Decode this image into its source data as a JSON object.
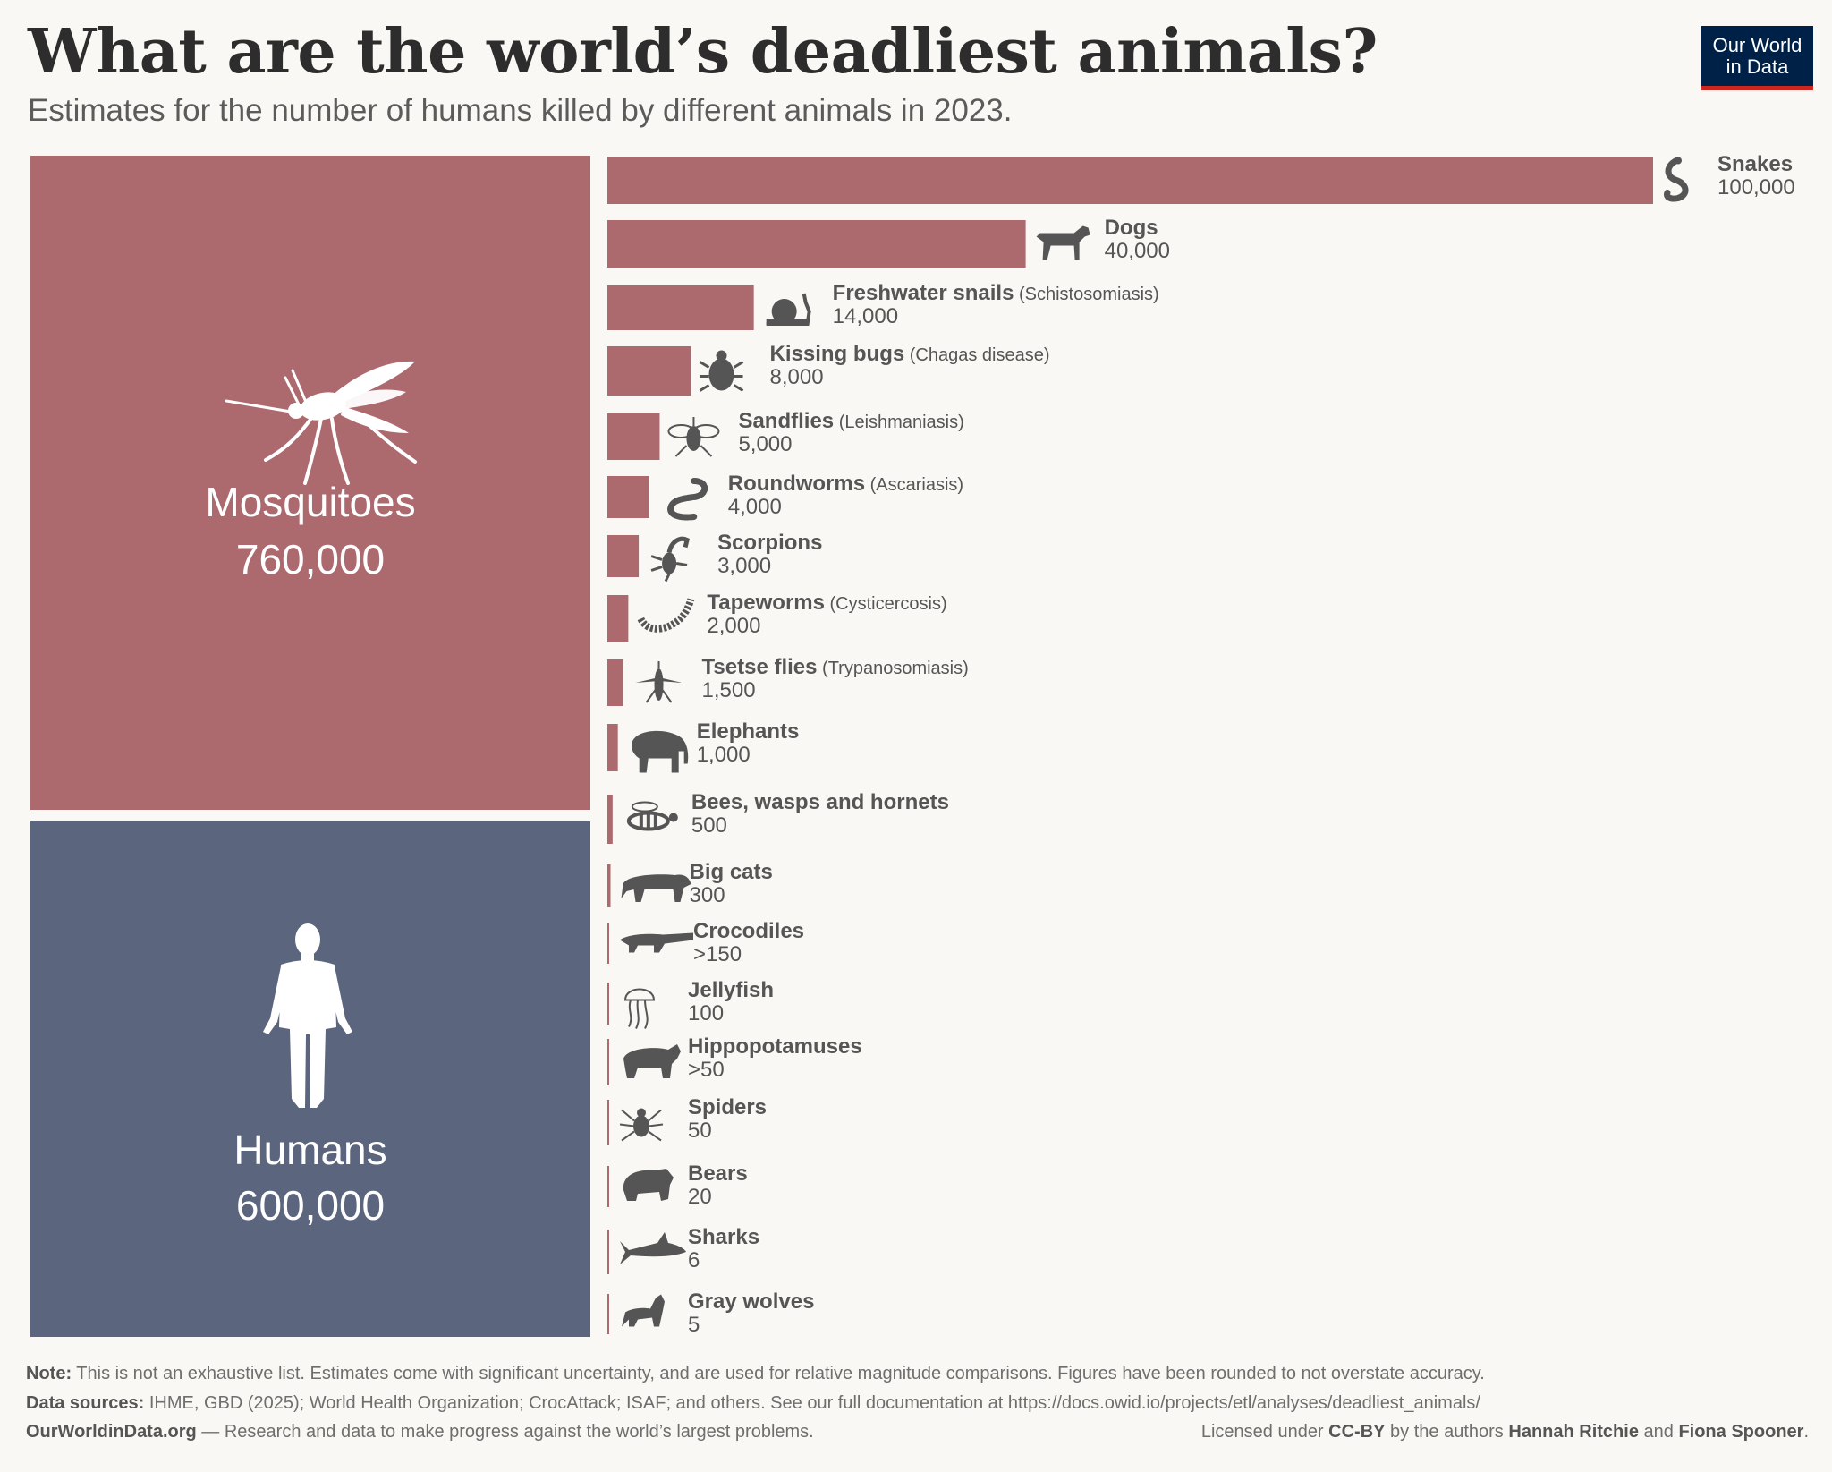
{
  "title": "What are the world’s deadliest animals?",
  "subtitle": "Estimates for the number of humans killed by different animals in 2023.",
  "logo": {
    "line1": "Our World",
    "line2": "in Data"
  },
  "colors": {
    "bar": "#ac6a6f",
    "humans": "#5b657e",
    "icon": "#555555",
    "background": "#f9f8f4"
  },
  "chart_data": {
    "type": "bar",
    "title": "What are the world’s deadliest animals?",
    "subtitle": "Estimates for the number of humans killed by different animals in 2023.",
    "unit": "humans killed",
    "large_blocks": [
      {
        "name": "Mosquitoes",
        "value": 760000,
        "value_label": "760,000",
        "icon": "mosquito-icon"
      },
      {
        "name": "Humans",
        "value": 600000,
        "value_label": "600,000",
        "icon": "human-icon"
      }
    ],
    "categories": [
      "Snakes",
      "Dogs",
      "Freshwater snails",
      "Kissing bugs",
      "Sandflies",
      "Roundworms",
      "Scorpions",
      "Tapeworms",
      "Tsetse flies",
      "Elephants",
      "Bees, wasps and hornets",
      "Big cats",
      "Crocodiles",
      "Jellyfish",
      "Hippopotamuses",
      "Spiders",
      "Bears",
      "Sharks",
      "Gray wolves"
    ],
    "values": [
      100000,
      40000,
      14000,
      8000,
      5000,
      4000,
      3000,
      2000,
      1500,
      1000,
      500,
      300,
      150,
      100,
      50,
      50,
      20,
      6,
      5
    ],
    "bars": [
      {
        "name": "Snakes",
        "note": "",
        "value": 100000,
        "value_label": "100,000",
        "icon": "snake-icon"
      },
      {
        "name": "Dogs",
        "note": "",
        "value": 40000,
        "value_label": "40,000",
        "icon": "dog-icon"
      },
      {
        "name": "Freshwater snails",
        "note": "(Schistosomiasis)",
        "value": 14000,
        "value_label": "14,000",
        "icon": "snail-icon"
      },
      {
        "name": "Kissing bugs",
        "note": "(Chagas disease)",
        "value": 8000,
        "value_label": "8,000",
        "icon": "bug-icon"
      },
      {
        "name": "Sandflies",
        "note": "(Leishmaniasis)",
        "value": 5000,
        "value_label": "5,000",
        "icon": "sandfly-icon"
      },
      {
        "name": "Roundworms",
        "note": "(Ascariasis)",
        "value": 4000,
        "value_label": "4,000",
        "icon": "roundworm-icon"
      },
      {
        "name": "Scorpions",
        "note": "",
        "value": 3000,
        "value_label": "3,000",
        "icon": "scorpion-icon"
      },
      {
        "name": "Tapeworms",
        "note": "(Cysticercosis)",
        "value": 2000,
        "value_label": "2,000",
        "icon": "tapeworm-icon"
      },
      {
        "name": "Tsetse flies",
        "note": "(Trypanosomiasis)",
        "value": 1500,
        "value_label": "1,500",
        "icon": "tsetse-fly-icon"
      },
      {
        "name": "Elephants",
        "note": "",
        "value": 1000,
        "value_label": "1,000",
        "icon": "elephant-icon"
      },
      {
        "name": "Bees, wasps and hornets",
        "note": "",
        "value": 500,
        "value_label": "500",
        "icon": "bee-icon"
      },
      {
        "name": "Big cats",
        "note": "",
        "value": 300,
        "value_label": "300",
        "icon": "big-cat-icon"
      },
      {
        "name": "Crocodiles",
        "note": "",
        "value": 150,
        "value_label": ">150",
        "icon": "crocodile-icon"
      },
      {
        "name": "Jellyfish",
        "note": "",
        "value": 100,
        "value_label": "100",
        "icon": "jellyfish-icon"
      },
      {
        "name": "Hippopotamuses",
        "note": "",
        "value": 50,
        "value_label": ">50",
        "icon": "hippo-icon"
      },
      {
        "name": "Spiders",
        "note": "",
        "value": 50,
        "value_label": "50",
        "icon": "spider-icon"
      },
      {
        "name": "Bears",
        "note": "",
        "value": 20,
        "value_label": "20",
        "icon": "bear-icon"
      },
      {
        "name": "Sharks",
        "note": "",
        "value": 6,
        "value_label": "6",
        "icon": "shark-icon"
      },
      {
        "name": "Gray wolves",
        "note": "",
        "value": 5,
        "value_label": "5",
        "icon": "wolf-icon"
      }
    ],
    "xlim": [
      0,
      100000
    ],
    "grid": false,
    "legend": "none"
  },
  "footer": {
    "note_label": "Note:",
    "note_text": " This is not an exhaustive list. Estimates come with significant uncertainty, and are used for relative magnitude comparisons. Figures have been rounded to not overstate accuracy.",
    "sources_label": "Data sources:",
    "sources_text": " IHME, GBD (2025); World Health Organization; CrocAttack; ISAF; and others. See our full documentation at https://docs.owid.io/projects/etl/analyses/deadliest_animals/",
    "site": "OurWorldinData.org",
    "site_tagline": " — Research and data to make progress against the world’s largest problems.",
    "license_prefix": "Licensed under ",
    "license": "CC-BY",
    "license_mid": " by the authors ",
    "author1": "Hannah Ritchie",
    "and": " and ",
    "author2": "Fiona Spooner",
    "license_end": "."
  }
}
